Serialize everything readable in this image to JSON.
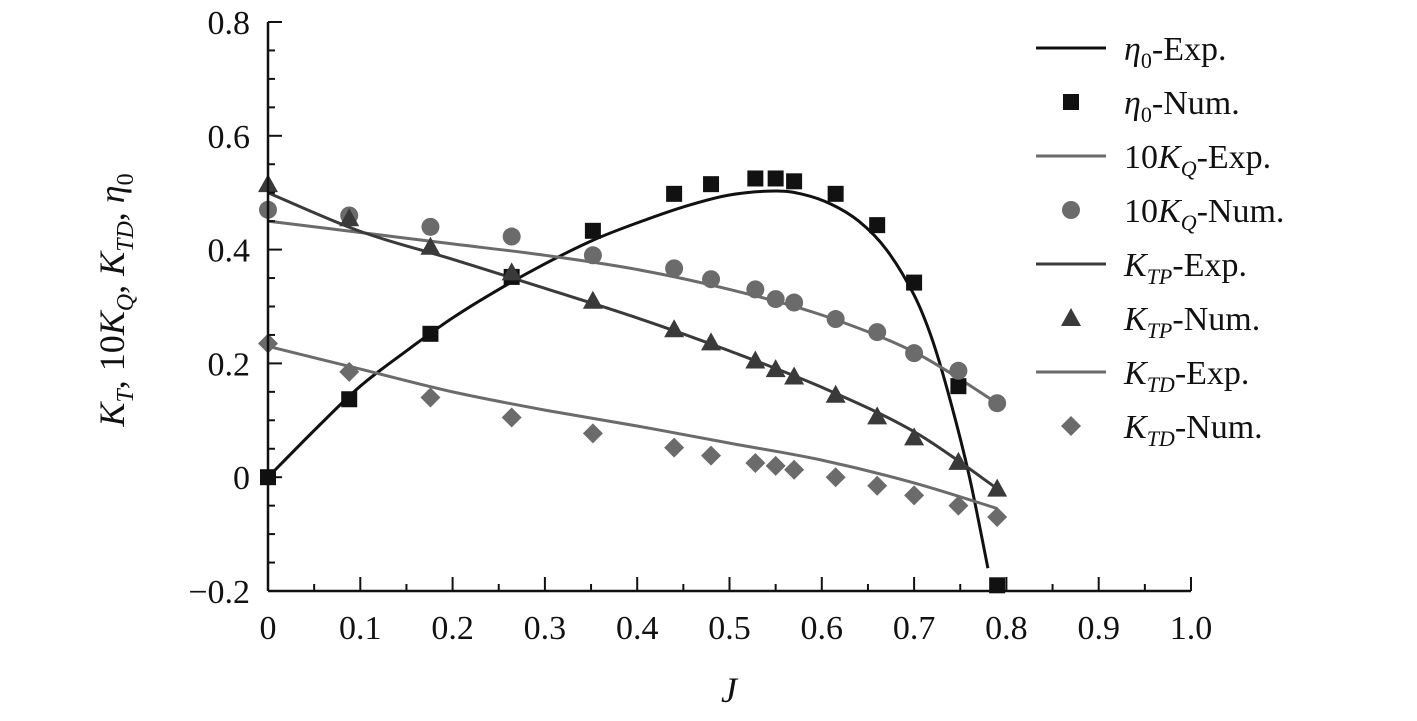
{
  "chart_data": {
    "type": "scatter",
    "title": "",
    "xlabel": "J",
    "ylabel": "K_T, 10K_Q, K_TD, η_0",
    "xlim": [
      0,
      1.0
    ],
    "ylim": [
      -0.2,
      0.8
    ],
    "x_ticks": [
      "0",
      "0.1",
      "0.2",
      "0.3",
      "0.4",
      "0.5",
      "0.6",
      "0.7",
      "0.8",
      "0.9",
      "1.0"
    ],
    "y_ticks": [
      "−0.2",
      "0",
      "0.2",
      "0.4",
      "0.6",
      "0.8"
    ],
    "grid": false,
    "legend_position": "right",
    "legend": [
      {
        "base": "η",
        "sub": "0",
        "coef": "",
        "suffix": "-Exp.",
        "kind": "line",
        "color": "#111111"
      },
      {
        "base": "η",
        "sub": "0",
        "coef": "",
        "suffix": "-Num.",
        "kind": "square",
        "color": "#111111"
      },
      {
        "base": "K",
        "sub": "Q",
        "coef": "10",
        "suffix": "-Exp.",
        "kind": "line",
        "color": "#6b6b6b"
      },
      {
        "base": "K",
        "sub": "Q",
        "coef": "10",
        "suffix": "-Num.",
        "kind": "circle",
        "color": "#6b6b6b"
      },
      {
        "base": "K",
        "sub": "TP",
        "coef": "",
        "suffix": "-Exp.",
        "kind": "line",
        "color": "#3a3a3a"
      },
      {
        "base": "K",
        "sub": "TP",
        "coef": "",
        "suffix": "-Num.",
        "kind": "triangle",
        "color": "#3a3a3a"
      },
      {
        "base": "K",
        "sub": "TD",
        "coef": "",
        "suffix": "-Exp.",
        "kind": "line",
        "color": "#6b6b6b"
      },
      {
        "base": "K",
        "sub": "TD",
        "coef": "",
        "suffix": "-Num.",
        "kind": "diamond",
        "color": "#6b6b6b"
      }
    ],
    "series": [
      {
        "name": "η0-Exp.",
        "kind": "line",
        "color": "#111111",
        "x": [
          0,
          0.05,
          0.1,
          0.15,
          0.2,
          0.25,
          0.3,
          0.35,
          0.4,
          0.45,
          0.5,
          0.55,
          0.58,
          0.61,
          0.64,
          0.67,
          0.7,
          0.72,
          0.74,
          0.76,
          0.78
        ],
        "y": [
          0,
          0.082,
          0.16,
          0.222,
          0.28,
          0.33,
          0.375,
          0.415,
          0.447,
          0.475,
          0.496,
          0.503,
          0.497,
          0.48,
          0.45,
          0.4,
          0.32,
          0.24,
          0.13,
          0,
          -0.16
        ]
      },
      {
        "name": "η0-Num.",
        "kind": "square",
        "color": "#111111",
        "x": [
          0,
          0.088,
          0.176,
          0.264,
          0.352,
          0.44,
          0.48,
          0.528,
          0.55,
          0.57,
          0.615,
          0.66,
          0.7,
          0.748,
          0.79
        ],
        "y": [
          0,
          0.137,
          0.252,
          0.352,
          0.433,
          0.498,
          0.515,
          0.525,
          0.525,
          0.52,
          0.498,
          0.443,
          0.342,
          0.16,
          -0.19
        ]
      },
      {
        "name": "10KQ-Exp.",
        "kind": "line",
        "color": "#6b6b6b",
        "x": [
          0,
          0.1,
          0.2,
          0.3,
          0.4,
          0.5,
          0.6,
          0.7,
          0.79
        ],
        "y": [
          0.45,
          0.43,
          0.41,
          0.39,
          0.365,
          0.33,
          0.285,
          0.22,
          0.13
        ]
      },
      {
        "name": "10KQ-Num.",
        "kind": "circle",
        "color": "#6b6b6b",
        "x": [
          0,
          0.088,
          0.176,
          0.264,
          0.352,
          0.44,
          0.48,
          0.528,
          0.55,
          0.57,
          0.615,
          0.66,
          0.7,
          0.748,
          0.79
        ],
        "y": [
          0.47,
          0.46,
          0.44,
          0.423,
          0.39,
          0.367,
          0.348,
          0.33,
          0.313,
          0.307,
          0.278,
          0.255,
          0.218,
          0.187,
          0.13
        ]
      },
      {
        "name": "KTP-Exp.",
        "kind": "line",
        "color": "#3a3a3a",
        "x": [
          0,
          0.1,
          0.2,
          0.3,
          0.4,
          0.5,
          0.6,
          0.7,
          0.79
        ],
        "y": [
          0.5,
          0.432,
          0.383,
          0.332,
          0.28,
          0.222,
          0.158,
          0.08,
          -0.02
        ]
      },
      {
        "name": "KTP-Num.",
        "kind": "triangle",
        "color": "#3a3a3a",
        "x": [
          0,
          0.088,
          0.176,
          0.264,
          0.352,
          0.44,
          0.48,
          0.528,
          0.55,
          0.57,
          0.615,
          0.66,
          0.7,
          0.748,
          0.79
        ],
        "y": [
          0.515,
          0.455,
          0.405,
          0.36,
          0.31,
          0.26,
          0.237,
          0.205,
          0.19,
          0.177,
          0.145,
          0.107,
          0.07,
          0.027,
          -0.02
        ]
      },
      {
        "name": "KTD-Exp.",
        "kind": "line",
        "color": "#6b6b6b",
        "x": [
          0,
          0.1,
          0.2,
          0.3,
          0.4,
          0.5,
          0.6,
          0.7,
          0.79
        ],
        "y": [
          0.23,
          0.19,
          0.15,
          0.118,
          0.09,
          0.06,
          0.03,
          -0.01,
          -0.055
        ]
      },
      {
        "name": "KTD-Num.",
        "kind": "diamond",
        "color": "#6b6b6b",
        "x": [
          0,
          0.088,
          0.176,
          0.264,
          0.352,
          0.44,
          0.48,
          0.528,
          0.55,
          0.57,
          0.615,
          0.66,
          0.7,
          0.748,
          0.79
        ],
        "y": [
          0.235,
          0.185,
          0.14,
          0.105,
          0.077,
          0.052,
          0.038,
          0.025,
          0.02,
          0.013,
          0,
          -0.015,
          -0.032,
          -0.05,
          -0.07
        ]
      }
    ]
  }
}
